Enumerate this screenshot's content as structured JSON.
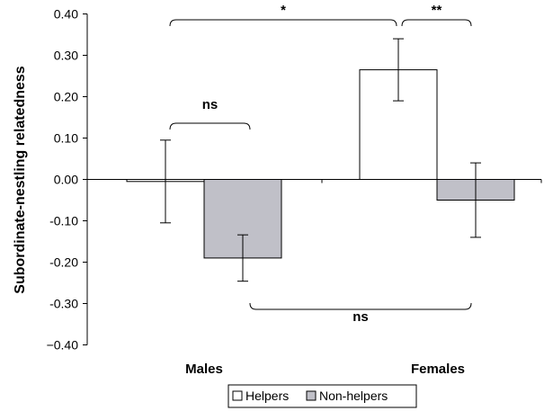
{
  "chart_data": {
    "type": "bar",
    "ylabel": "Subordinate-nestling relatedness",
    "xlabel": "",
    "ylim": [
      -0.4,
      0.4
    ],
    "yticks": [
      "0.40",
      "0.30",
      "0.20",
      "0.10",
      "0.00",
      "-0.10",
      "-0.20",
      "-0.30",
      "−0.40"
    ],
    "categories": [
      "Males",
      "Females"
    ],
    "series": [
      {
        "name": "Helpers",
        "color": "#ffffff",
        "values": [
          -0.005,
          0.265
        ],
        "error": [
          0.1,
          0.075
        ]
      },
      {
        "name": "Non-helpers",
        "color": "#c0c0c8",
        "values": [
          -0.19,
          -0.05
        ],
        "error": [
          0.056,
          0.09
        ]
      }
    ],
    "annotations": [
      {
        "label": "ns",
        "from": "Males-Helpers",
        "to": "Males-Non-helpers",
        "position": "above"
      },
      {
        "label": "*",
        "from": "Males-Helpers",
        "to": "Females-Helpers",
        "position": "above"
      },
      {
        "label": "**",
        "from": "Females-Helpers",
        "to": "Females-Non-helpers",
        "position": "above"
      },
      {
        "label": "ns",
        "from": "Males-Non-helpers",
        "to": "Females-Non-helpers",
        "position": "below"
      }
    ],
    "legend_position": "bottom",
    "grid": false
  }
}
